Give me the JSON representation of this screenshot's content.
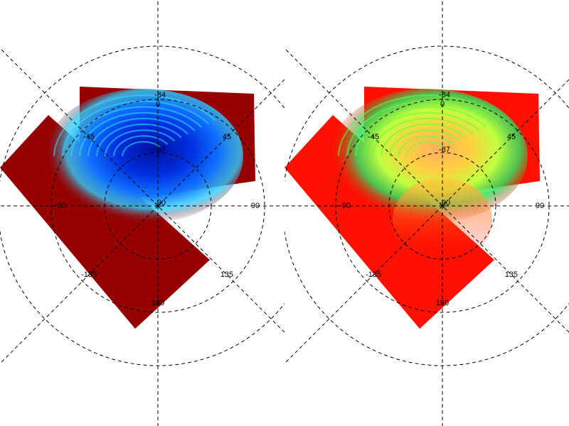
{
  "panels": [
    {
      "lat_labels": [
        "-84",
        "-87",
        "-90"
      ],
      "lon_labels": [
        "0",
        "45",
        "90",
        "135",
        "180",
        "-135",
        "-90",
        "-45"
      ]
    },
    {
      "lat_labels": [
        "-84",
        "-87",
        "-90"
      ],
      "lon_labels": [
        "0",
        "45",
        "90",
        "135",
        "180",
        "-135",
        "-90",
        "-45"
      ]
    }
  ]
}
